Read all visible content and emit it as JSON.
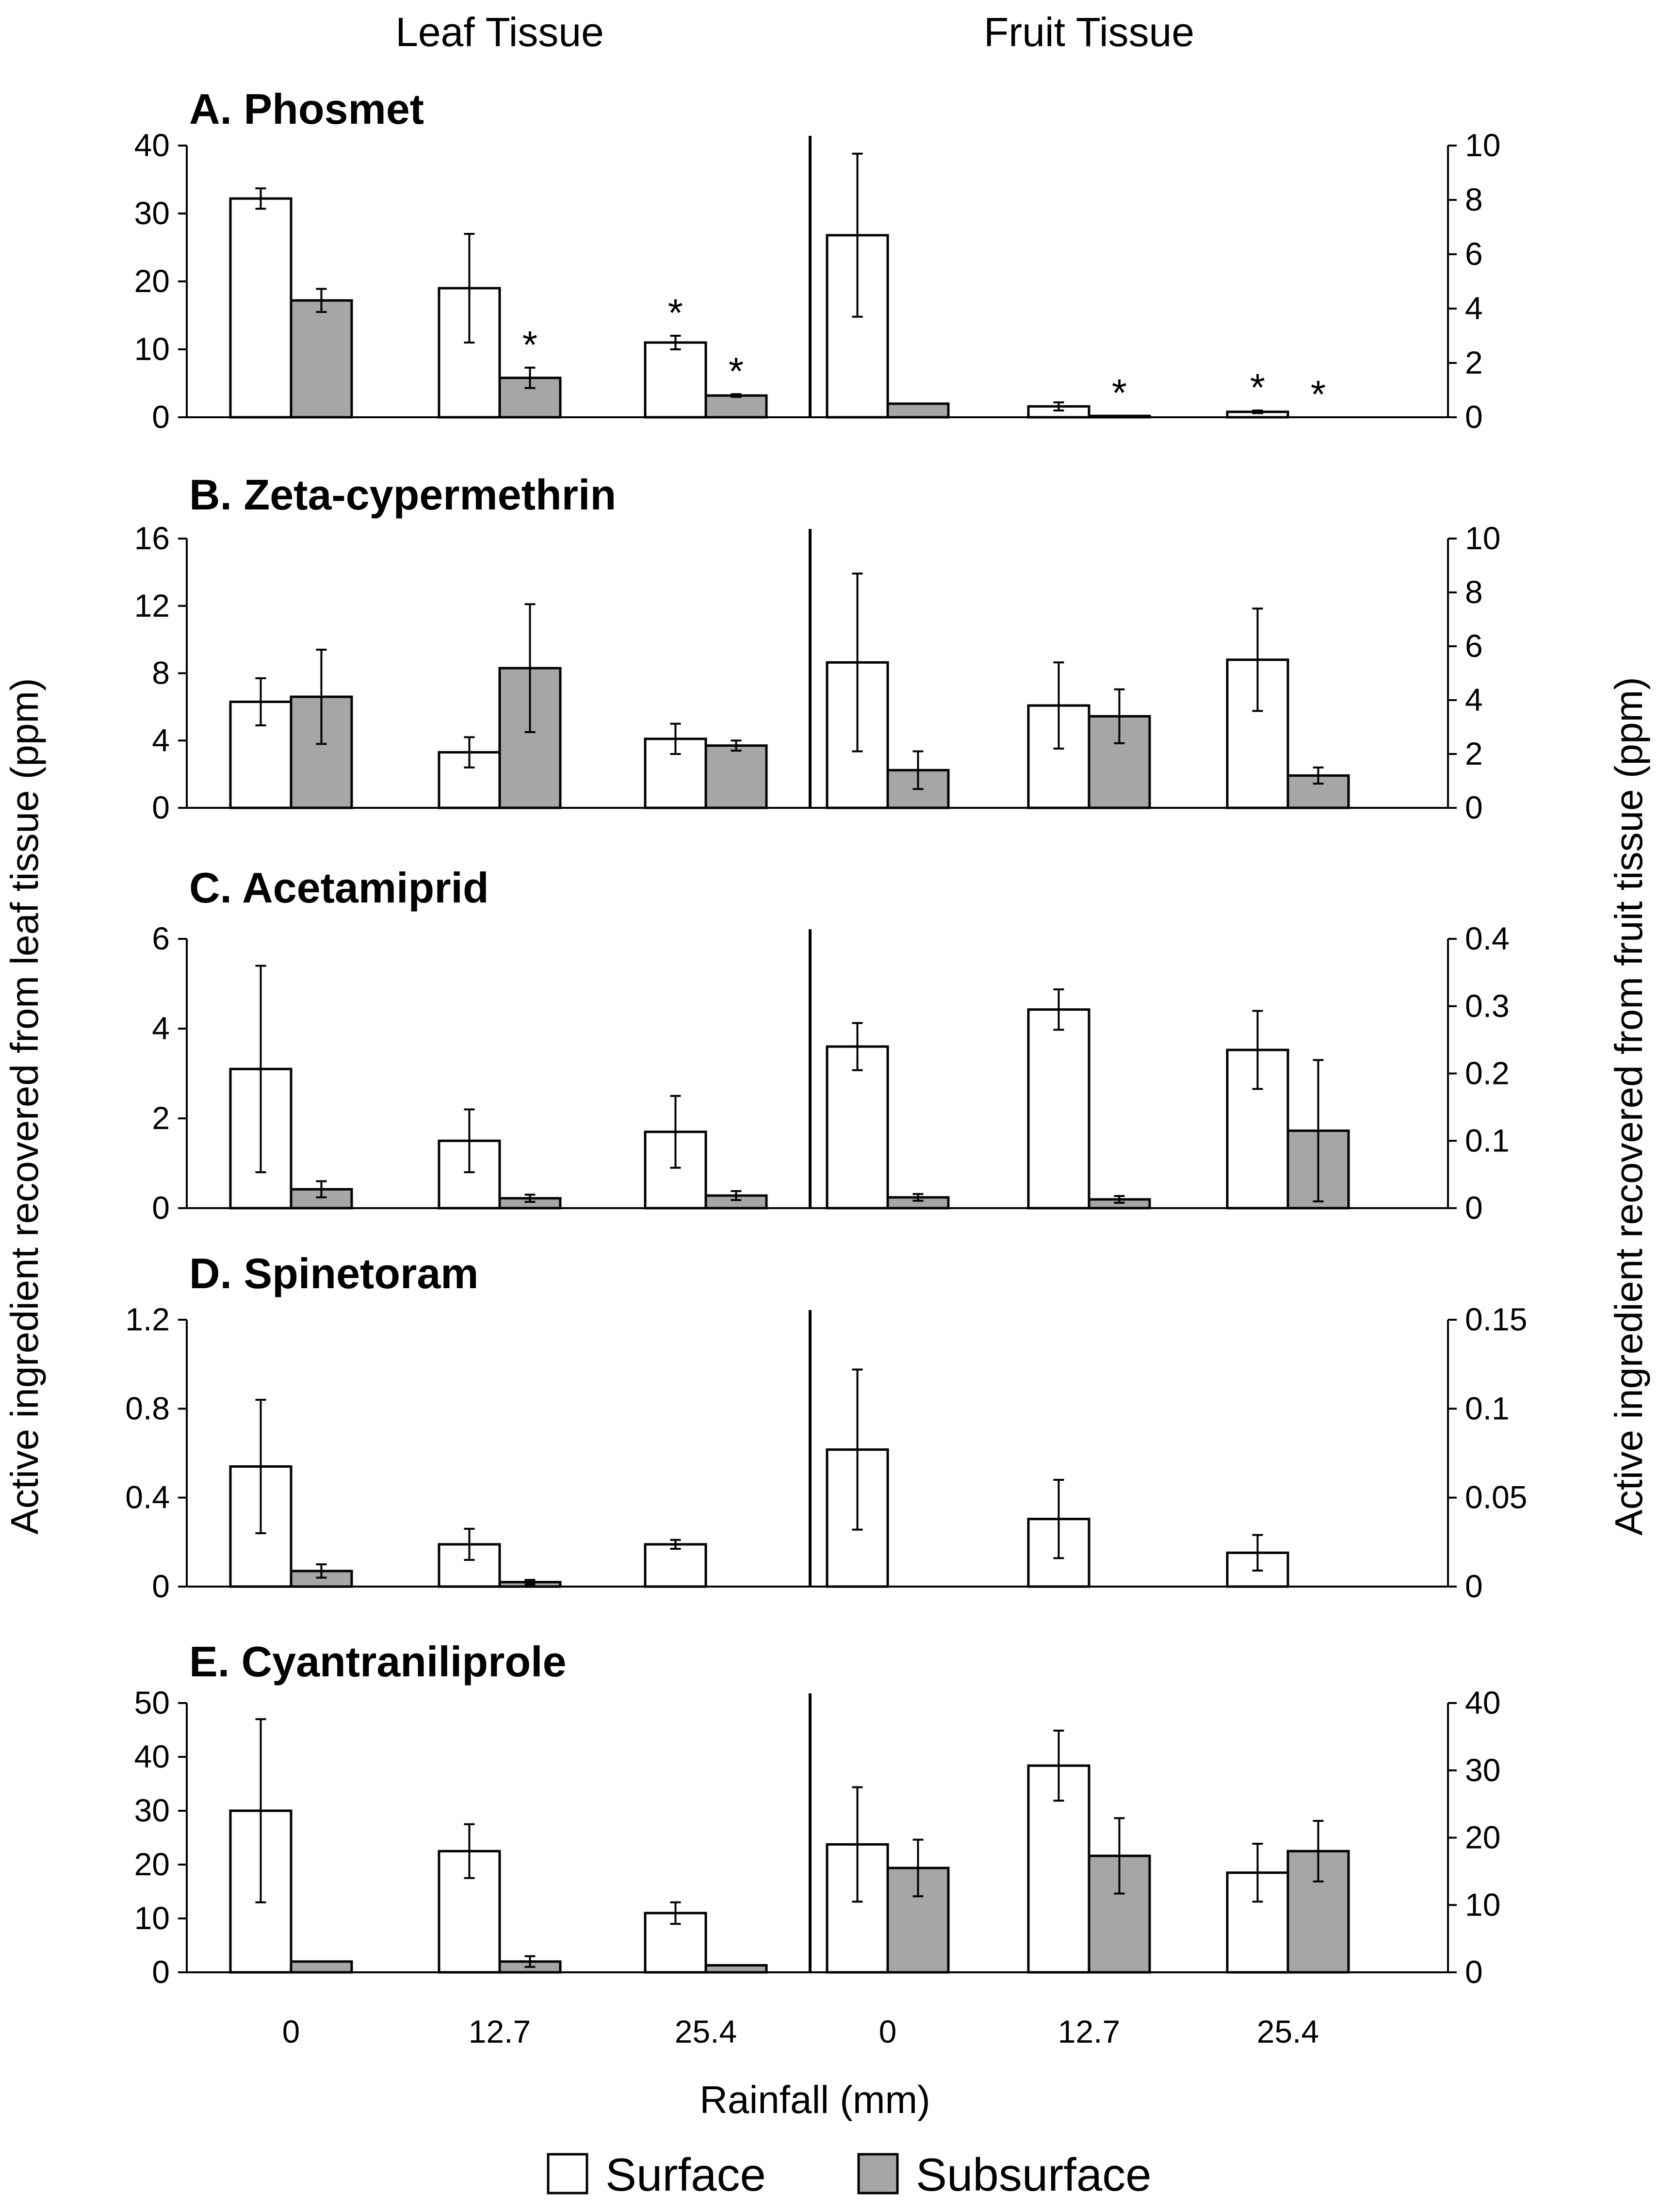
{
  "header": {
    "left": "Leaf Tissue",
    "right": "Fruit Tissue"
  },
  "legend": [
    {
      "label": "Surface",
      "color": "#ffffff"
    },
    {
      "label": "Subsurface",
      "color": "#a6a6a6"
    }
  ],
  "colors": {
    "surface": "#ffffff",
    "subsurface": "#a6a6a6",
    "axis": "#000000"
  },
  "chart_data": {
    "type": "bar",
    "xlabel": "Rainfall (mm)",
    "ylabel_left": "Active ingredient recovered from leaf tissue (ppm)",
    "ylabel_right": "Active ingredient recovered from fruit tissue (ppm)",
    "categories": [
      "0",
      "12.7",
      "25.4"
    ],
    "grid": false,
    "legend_position": "bottom",
    "panels": [
      {
        "title": "A. Phosmet",
        "leaf": {
          "ylim": [
            0,
            40
          ],
          "ticks": [
            "0",
            "10",
            "20",
            "30",
            "40"
          ],
          "series": [
            {
              "name": "Surface",
              "values": [
                32.2,
                19.0,
                11.0
              ],
              "errors": [
                1.5,
                8.0,
                1.0
              ],
              "sig": [
                false,
                false,
                true
              ]
            },
            {
              "name": "Subsurface",
              "values": [
                17.2,
                5.8,
                3.2
              ],
              "errors": [
                1.7,
                1.5,
                0.2
              ],
              "sig": [
                false,
                true,
                true
              ]
            }
          ]
        },
        "fruit": {
          "ylim": [
            0,
            10
          ],
          "ticks": [
            "0",
            "2",
            "4",
            "6",
            "8",
            "10"
          ],
          "series": [
            {
              "name": "Surface",
              "values": [
                6.7,
                0.4,
                0.2
              ],
              "errors": [
                3.0,
                0.15,
                0.05
              ],
              "sig": [
                false,
                false,
                true
              ]
            },
            {
              "name": "Subsurface",
              "values": [
                0.5,
                0.05,
                0.0
              ],
              "errors": [
                0.0,
                0.0,
                0.0
              ],
              "sig": [
                false,
                true,
                true
              ]
            }
          ]
        }
      },
      {
        "title": "B. Zeta-cypermethrin",
        "leaf": {
          "ylim": [
            0,
            16
          ],
          "ticks": [
            "0",
            "4",
            "8",
            "12",
            "16"
          ],
          "series": [
            {
              "name": "Surface",
              "values": [
                6.3,
                3.3,
                4.1
              ],
              "errors": [
                1.4,
                0.9,
                0.9
              ],
              "sig": [
                false,
                false,
                false
              ]
            },
            {
              "name": "Subsurface",
              "values": [
                6.6,
                8.3,
                3.7
              ],
              "errors": [
                2.8,
                3.8,
                0.3
              ],
              "sig": [
                false,
                false,
                false
              ]
            }
          ]
        },
        "fruit": {
          "ylim": [
            0,
            10
          ],
          "ticks": [
            "0",
            "2",
            "4",
            "6",
            "8",
            "10"
          ],
          "series": [
            {
              "name": "Surface",
              "values": [
                5.4,
                3.8,
                5.5
              ],
              "errors": [
                3.3,
                1.6,
                1.9
              ],
              "sig": [
                false,
                false,
                false
              ]
            },
            {
              "name": "Subsurface",
              "values": [
                1.4,
                3.4,
                1.2
              ],
              "errors": [
                0.7,
                1.0,
                0.3
              ],
              "sig": [
                false,
                false,
                false
              ]
            }
          ]
        }
      },
      {
        "title": "C. Acetamiprid",
        "leaf": {
          "ylim": [
            0,
            6
          ],
          "ticks": [
            "0",
            "2",
            "4",
            "6"
          ],
          "series": [
            {
              "name": "Surface",
              "values": [
                3.1,
                1.5,
                1.7
              ],
              "errors": [
                2.3,
                0.7,
                0.8
              ],
              "sig": [
                false,
                false,
                false
              ]
            },
            {
              "name": "Subsurface",
              "values": [
                0.42,
                0.22,
                0.28
              ],
              "errors": [
                0.18,
                0.08,
                0.1
              ],
              "sig": [
                false,
                false,
                false
              ]
            }
          ]
        },
        "fruit": {
          "ylim": [
            0,
            0.4
          ],
          "ticks": [
            "0",
            "0.1",
            "0.2",
            "0.3",
            "0.4"
          ],
          "series": [
            {
              "name": "Surface",
              "values": [
                0.24,
                0.295,
                0.235
              ],
              "errors": [
                0.035,
                0.03,
                0.058
              ],
              "sig": [
                false,
                false,
                false
              ]
            },
            {
              "name": "Subsurface",
              "values": [
                0.016,
                0.013,
                0.115
              ],
              "errors": [
                0.005,
                0.005,
                0.105
              ],
              "sig": [
                false,
                false,
                false
              ]
            }
          ]
        }
      },
      {
        "title": "D. Spinetoram",
        "leaf": {
          "ylim": [
            0,
            1.2
          ],
          "ticks": [
            "0",
            "0.4",
            "0.8",
            "1.2"
          ],
          "series": [
            {
              "name": "Surface",
              "values": [
                0.54,
                0.19,
                0.19
              ],
              "errors": [
                0.3,
                0.07,
                0.02
              ],
              "sig": [
                false,
                false,
                false
              ]
            },
            {
              "name": "Subsurface",
              "values": [
                0.07,
                0.02,
                0.0
              ],
              "errors": [
                0.03,
                0.01,
                0.0
              ],
              "sig": [
                false,
                false,
                false
              ]
            }
          ]
        },
        "fruit": {
          "ylim": [
            0,
            0.15
          ],
          "ticks": [
            "0",
            "0.05",
            "0.1",
            "0.15"
          ],
          "series": [
            {
              "name": "Surface",
              "values": [
                0.077,
                0.038,
                0.019
              ],
              "errors": [
                0.045,
                0.022,
                0.01
              ],
              "sig": [
                false,
                false,
                false
              ]
            },
            {
              "name": "Subsurface",
              "values": [
                0.0,
                0.0,
                0.0
              ],
              "errors": [
                0.0,
                0.0,
                0.0
              ],
              "sig": [
                false,
                false,
                false
              ]
            }
          ]
        }
      },
      {
        "title": "E. Cyantraniliprole",
        "leaf": {
          "ylim": [
            0,
            50
          ],
          "ticks": [
            "0",
            "10",
            "20",
            "30",
            "40",
            "50"
          ],
          "series": [
            {
              "name": "Surface",
              "values": [
                30.0,
                22.5,
                11.0
              ],
              "errors": [
                17.0,
                5.0,
                2.0
              ],
              "sig": [
                false,
                false,
                false
              ]
            },
            {
              "name": "Subsurface",
              "values": [
                2.0,
                2.0,
                1.3
              ],
              "errors": [
                0.0,
                1.0,
                0.0
              ],
              "sig": [
                false,
                false,
                false
              ]
            }
          ]
        },
        "fruit": {
          "ylim": [
            0,
            40
          ],
          "ticks": [
            "0",
            "10",
            "20",
            "30",
            "40"
          ],
          "series": [
            {
              "name": "Surface",
              "values": [
                19.0,
                30.7,
                14.8
              ],
              "errors": [
                8.5,
                5.2,
                4.3
              ],
              "sig": [
                false,
                false,
                false
              ]
            },
            {
              "name": "Subsurface",
              "values": [
                15.5,
                17.3,
                18.0
              ],
              "errors": [
                4.2,
                5.6,
                4.5
              ],
              "sig": [
                false,
                false,
                false
              ]
            }
          ]
        }
      }
    ]
  }
}
